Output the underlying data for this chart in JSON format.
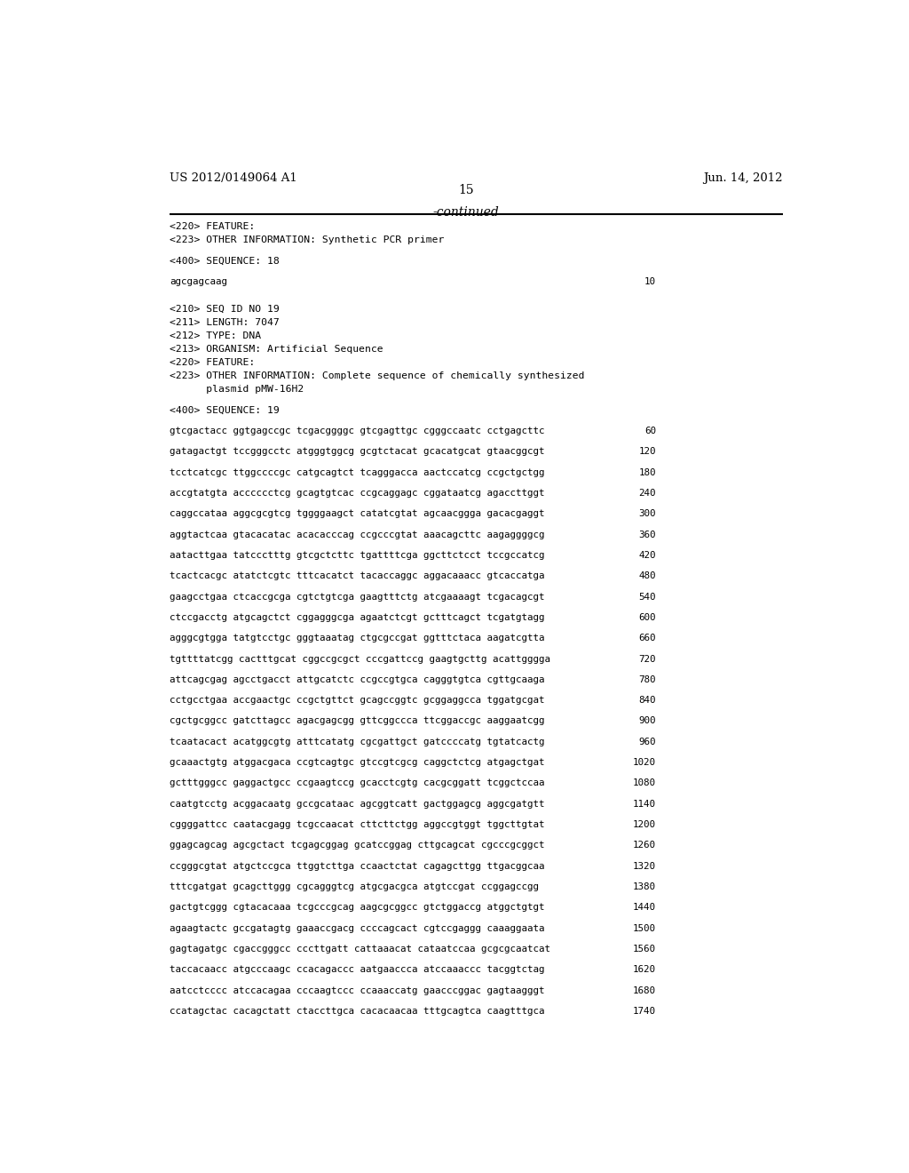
{
  "header_left": "US 2012/0149064 A1",
  "header_right": "Jun. 14, 2012",
  "page_number": "15",
  "continued_label": "-continued",
  "background_color": "#ffffff",
  "text_color": "#000000",
  "mono_font": "DejaVu Sans Mono",
  "serif_font": "DejaVu Serif",
  "header_fontsize": 9.5,
  "page_num_fontsize": 10,
  "continued_fontsize": 10,
  "meta_fontsize": 8.2,
  "seq_fontsize": 7.8,
  "content": [
    {
      "type": "meta",
      "text": "<220> FEATURE:"
    },
    {
      "type": "meta",
      "text": "<223> OTHER INFORMATION: Synthetic PCR primer"
    },
    {
      "type": "blank"
    },
    {
      "type": "meta",
      "text": "<400> SEQUENCE: 18"
    },
    {
      "type": "blank"
    },
    {
      "type": "seq_line",
      "seq": "agcgagcaag",
      "num": "10"
    },
    {
      "type": "blank"
    },
    {
      "type": "blank"
    },
    {
      "type": "meta",
      "text": "<210> SEQ ID NO 19"
    },
    {
      "type": "meta",
      "text": "<211> LENGTH: 7047"
    },
    {
      "type": "meta",
      "text": "<212> TYPE: DNA"
    },
    {
      "type": "meta",
      "text": "<213> ORGANISM: Artificial Sequence"
    },
    {
      "type": "meta",
      "text": "<220> FEATURE:"
    },
    {
      "type": "meta",
      "text": "<223> OTHER INFORMATION: Complete sequence of chemically synthesized"
    },
    {
      "type": "meta",
      "text": "      plasmid pMW-16H2"
    },
    {
      "type": "blank"
    },
    {
      "type": "meta",
      "text": "<400> SEQUENCE: 19"
    },
    {
      "type": "blank"
    },
    {
      "type": "seq_line",
      "seq": "gtcgactacc ggtgagccgc tcgacggggc gtcgagttgc cgggccaatc cctgagcttc",
      "num": "60"
    },
    {
      "type": "blank"
    },
    {
      "type": "seq_line",
      "seq": "gatagactgt tccgggcctc atgggtggcg gcgtctacat gcacatgcat gtaacggcgt",
      "num": "120"
    },
    {
      "type": "blank"
    },
    {
      "type": "seq_line",
      "seq": "tcctcatcgc ttggccccgc catgcagtct tcagggacca aactccatcg ccgctgctgg",
      "num": "180"
    },
    {
      "type": "blank"
    },
    {
      "type": "seq_line",
      "seq": "accgtatgta acccccctcg gcagtgtcac ccgcaggagc cggataatcg agaccttggt",
      "num": "240"
    },
    {
      "type": "blank"
    },
    {
      "type": "seq_line",
      "seq": "caggccataa aggcgcgtcg tggggaagct catatcgtat agcaacggga gacacgaggt",
      "num": "300"
    },
    {
      "type": "blank"
    },
    {
      "type": "seq_line",
      "seq": "aggtactcaa gtacacatac acacacccag ccgcccgtat aaacagcttc aagaggggcg",
      "num": "360"
    },
    {
      "type": "blank"
    },
    {
      "type": "seq_line",
      "seq": "aatacttgaa tatccctttg gtcgctcttc tgattttcga ggcttctcct tccgccatcg",
      "num": "420"
    },
    {
      "type": "blank"
    },
    {
      "type": "seq_line",
      "seq": "tcactcacgc atatctcgtc tttcacatct tacaccaggc aggacaaacc gtcaccatga",
      "num": "480"
    },
    {
      "type": "blank"
    },
    {
      "type": "seq_line",
      "seq": "gaagcctgaa ctcaccgcga cgtctgtcga gaagtttctg atcgaaaagt tcgacagcgt",
      "num": "540"
    },
    {
      "type": "blank"
    },
    {
      "type": "seq_line",
      "seq": "ctccgacctg atgcagctct cggagggcga agaatctcgt gctttcagct tcgatgtagg",
      "num": "600"
    },
    {
      "type": "blank"
    },
    {
      "type": "seq_line",
      "seq": "agggcgtgga tatgtcctgc gggtaaatag ctgcgccgat ggtttctaca aagatcgtta",
      "num": "660"
    },
    {
      "type": "blank"
    },
    {
      "type": "seq_line",
      "seq": "tgttttatcgg cactttgcat cggccgcgct cccgattccg gaagtgcttg acattgggga",
      "num": "720"
    },
    {
      "type": "blank"
    },
    {
      "type": "seq_line",
      "seq": "attcagcgag agcctgacct attgcatctc ccgccgtgca cagggtgtca cgttgcaaga",
      "num": "780"
    },
    {
      "type": "blank"
    },
    {
      "type": "seq_line",
      "seq": "cctgcctgaa accgaactgc ccgctgttct gcagccggtc gcggaggcca tggatgcgat",
      "num": "840"
    },
    {
      "type": "blank"
    },
    {
      "type": "seq_line",
      "seq": "cgctgcggcc gatcttagcc agacgagcgg gttcggccca ttcggaccgc aaggaatcgg",
      "num": "900"
    },
    {
      "type": "blank"
    },
    {
      "type": "seq_line",
      "seq": "tcaatacact acatggcgtg atttcatatg cgcgattgct gatccccatg tgtatcactg",
      "num": "960"
    },
    {
      "type": "blank"
    },
    {
      "type": "seq_line",
      "seq": "gcaaactgtg atggacgaca ccgtcagtgc gtccgtcgcg caggctctcg atgagctgat",
      "num": "1020"
    },
    {
      "type": "blank"
    },
    {
      "type": "seq_line",
      "seq": "gctttgggcc gaggactgcc ccgaagtccg gcacctcgtg cacgcggatt tcggctccaa",
      "num": "1080"
    },
    {
      "type": "blank"
    },
    {
      "type": "seq_line",
      "seq": "caatgtcctg acggacaatg gccgcataac agcggtcatt gactggagcg aggcgatgtt",
      "num": "1140"
    },
    {
      "type": "blank"
    },
    {
      "type": "seq_line",
      "seq": "cggggattcc caatacgagg tcgccaacat cttcttctgg aggccgtggt tggcttgtat",
      "num": "1200"
    },
    {
      "type": "blank"
    },
    {
      "type": "seq_line",
      "seq": "ggagcagcag agcgctact tcgagcggag gcatccggag cttgcagcat cgcccgcggct",
      "num": "1260"
    },
    {
      "type": "blank"
    },
    {
      "type": "seq_line",
      "seq": "ccgggcgtat atgctccgca ttggtcttga ccaactctat cagagcttgg ttgacggcaa",
      "num": "1320"
    },
    {
      "type": "blank"
    },
    {
      "type": "seq_line",
      "seq": "tttcgatgat gcagcttggg cgcagggtcg atgcgacgca atgtccgat ccggagccgg",
      "num": "1380"
    },
    {
      "type": "blank"
    },
    {
      "type": "seq_line",
      "seq": "gactgtcggg cgtacacaaa tcgcccgcag aagcgcggcc gtctggaccg atggctgtgt",
      "num": "1440"
    },
    {
      "type": "blank"
    },
    {
      "type": "seq_line",
      "seq": "agaagtactc gccgatagtg gaaaccgacg ccccagcact cgtccgaggg caaaggaata",
      "num": "1500"
    },
    {
      "type": "blank"
    },
    {
      "type": "seq_line",
      "seq": "gagtagatgc cgaccgggcc cccttgatt cattaaacat cataatccaa gcgcgcaatcat",
      "num": "1560"
    },
    {
      "type": "blank"
    },
    {
      "type": "seq_line",
      "seq": "taccacaacc atgcccaagc ccacagaccc aatgaaccca atccaaaccc tacggtctag",
      "num": "1620"
    },
    {
      "type": "blank"
    },
    {
      "type": "seq_line",
      "seq": "aatcctcccc atccacagaa cccaagtccc ccaaaccatg gaacccggac gagtaagggt",
      "num": "1680"
    },
    {
      "type": "blank"
    },
    {
      "type": "seq_line",
      "seq": "ccatagctac cacagctatt ctaccttgca cacacaacaa tttgcagtca caagtttgca",
      "num": "1740"
    }
  ]
}
